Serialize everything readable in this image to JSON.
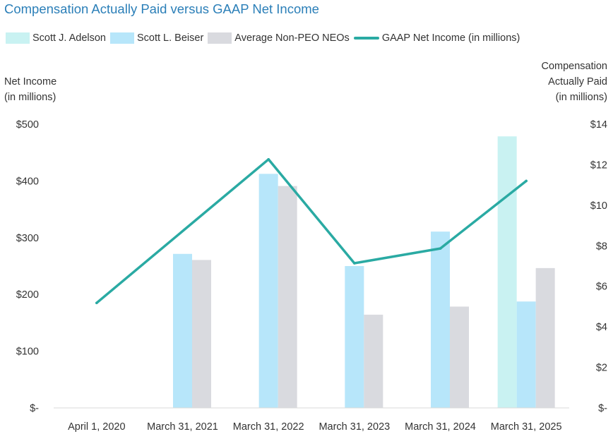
{
  "chart_data": {
    "type": "bar",
    "title": "Compensation Actually Paid versus GAAP Net Income",
    "categories": [
      "April 1, 2020",
      "March 31, 2021",
      "March 31, 2022",
      "March 31, 2023",
      "March 31, 2024",
      "March 31, 2025"
    ],
    "series": [
      {
        "name": "Scott J. Adelson",
        "axis": "right",
        "kind": "bar",
        "color": "#c9f2f2",
        "values": [
          null,
          null,
          null,
          null,
          null,
          13.4
        ]
      },
      {
        "name": "Scott L. Beiser",
        "axis": "right",
        "kind": "bar",
        "color": "#b7e6fa",
        "values": [
          null,
          7.6,
          11.55,
          7.0,
          8.7,
          5.25
        ]
      },
      {
        "name": "Average Non-PEO NEOs",
        "axis": "right",
        "kind": "bar",
        "color": "#d9dadf",
        "values": [
          null,
          7.3,
          10.95,
          4.6,
          5.0,
          6.9
        ]
      },
      {
        "name": "GAAP Net Income (in millions)",
        "axis": "left",
        "kind": "line",
        "color": "#2aaaa3",
        "values": [
          185,
          null,
          438,
          255,
          281,
          400
        ]
      }
    ],
    "left_axis": {
      "label_lines": [
        "Net Income",
        "(in millions)"
      ],
      "ylim": [
        0,
        500
      ],
      "ticks": [
        0,
        100,
        200,
        300,
        400,
        500
      ],
      "tick_labels": [
        "$-",
        "$100",
        "$200",
        "$300",
        "$400",
        "$500"
      ]
    },
    "right_axis": {
      "label_lines": [
        "Compensation",
        "Actually Paid",
        "(in millions)"
      ],
      "ylim": [
        0,
        14
      ],
      "ticks": [
        0,
        2,
        4,
        6,
        8,
        10,
        12,
        14
      ],
      "tick_labels": [
        "$-",
        "$2",
        "$4",
        "$6",
        "$8",
        "$10",
        "$12",
        "$14"
      ]
    },
    "grid": false,
    "legend_position": "top"
  }
}
